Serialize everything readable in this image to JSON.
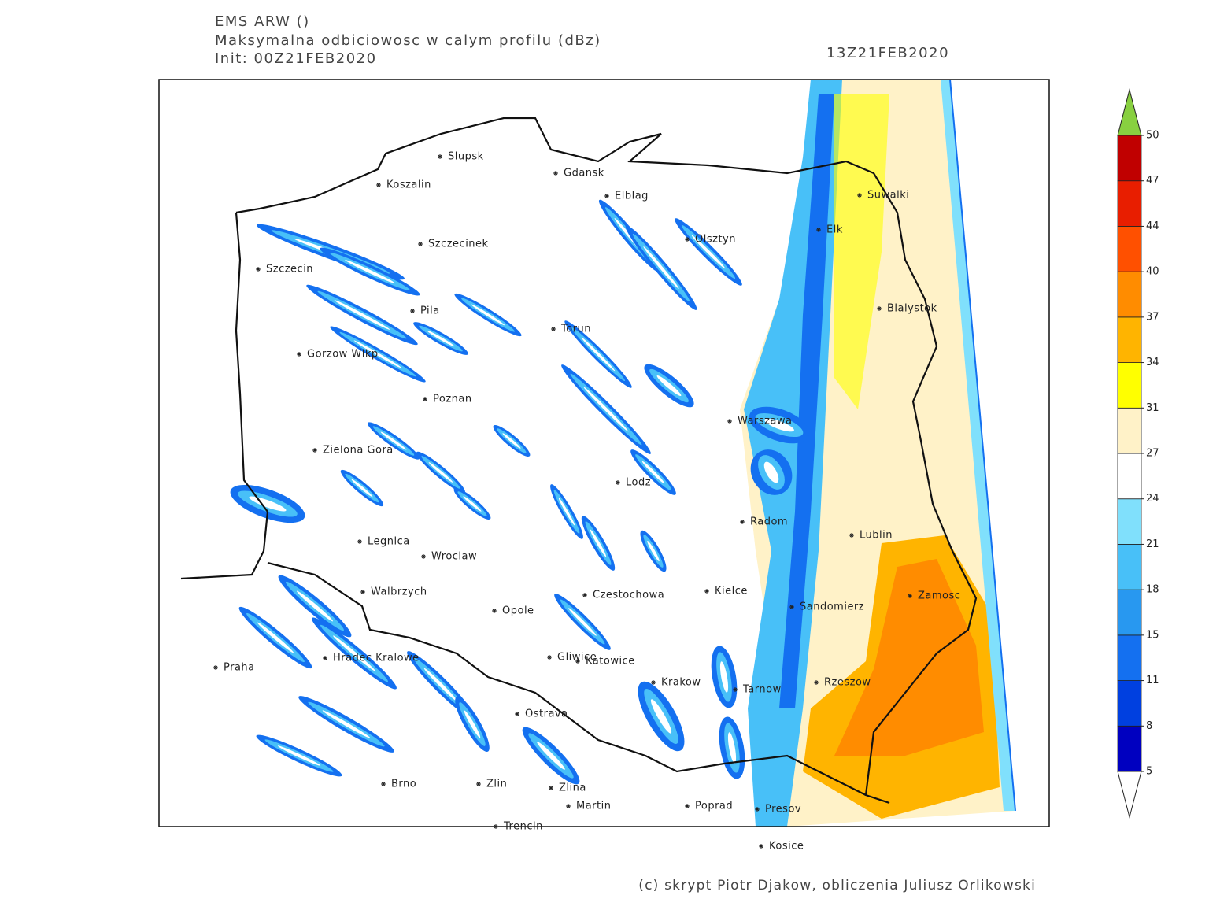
{
  "header": {
    "model": "EMS ARW ()",
    "field": "Maksymalna odbiciowosc w calym profilu (dBz)",
    "init": "Init: 00Z21FEB2020",
    "valid": "13Z21FEB2020"
  },
  "cities": [
    "Slupsk",
    "Koszalin",
    "Gdansk",
    "Elblag",
    "Suwalki",
    "Elk",
    "Olsztyn",
    "Szczecinek",
    "Szczecin",
    "Bialystok",
    "Pila",
    "Torun",
    "Gorzow Wlkp",
    "Poznan",
    "Warszawa",
    "Zielona Gora",
    "Lodz",
    "Radom",
    "Lublin",
    "Legnica",
    "Wroclaw",
    "Walbrzych",
    "Czestochowa",
    "Kielce",
    "Zamosc",
    "Opole",
    "Sandomierz",
    "Hradec Kralowe",
    "Gliwice",
    "Katowice",
    "Praha",
    "Krakow",
    "Tarnow",
    "Rzeszow",
    "Ostrava",
    "Brno",
    "Zlin",
    "Zlina",
    "Martin",
    "Poprad",
    "Presov",
    "Trencin",
    "Kosice"
  ],
  "colorbar": {
    "levels": [
      5,
      8,
      11,
      15,
      18,
      21,
      24,
      27,
      31,
      34,
      37,
      40,
      44,
      47,
      50
    ],
    "colors": [
      "#0000c0",
      "#0040e0",
      "#1470f0",
      "#2898f0",
      "#48c0f8",
      "#80e0fc",
      "#ffffff",
      "#fff2c8",
      "#ffff00",
      "#ffb400",
      "#ff8c00",
      "#ff5000",
      "#e81e00",
      "#c00000"
    ],
    "under_color": "#ffffff",
    "over_color": "#88d040"
  },
  "footer": "(c) skrypt Piotr Djakow, obliczenia Juliusz Orlikowski"
}
